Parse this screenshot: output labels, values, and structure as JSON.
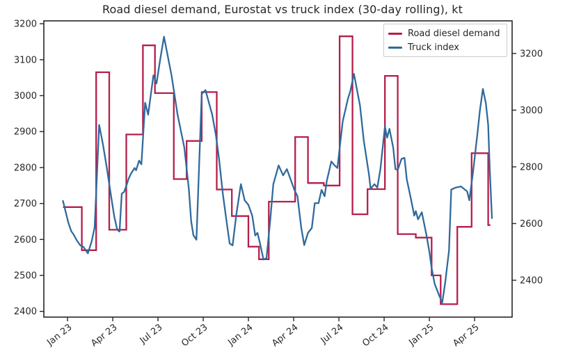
{
  "figure": {
    "title": "Road diesel demand, Eurostat vs truck index (30-day rolling), kt",
    "background": "#ffffff",
    "spine_color": "#262626",
    "tick_label_color": "#262626"
  },
  "legend": {
    "items": [
      {
        "label": "Road diesel demand",
        "color": "#b41f4a"
      },
      {
        "label": "Truck index",
        "color": "#306a9c"
      }
    ]
  },
  "chart_data": {
    "type": "line",
    "title": "Road diesel demand, Eurostat vs truck index (30-day rolling), kt",
    "unit": "kt",
    "x_unit": "months since Jan 2023 (0 = Jan 23, 3 = Apr 23, ...)",
    "grid": false,
    "legend_position": "upper right",
    "x_ticks": [
      {
        "m": 0,
        "label": "Jan 23"
      },
      {
        "m": 3,
        "label": "Apr 23"
      },
      {
        "m": 6,
        "label": "Jul 23"
      },
      {
        "m": 9,
        "label": "Oct 23"
      },
      {
        "m": 12,
        "label": "Jan 24"
      },
      {
        "m": 15,
        "label": "Apr 24"
      },
      {
        "m": 18,
        "label": "Jul 24"
      },
      {
        "m": 21,
        "label": "Oct 24"
      },
      {
        "m": 24,
        "label": "Jan 25"
      },
      {
        "m": 27,
        "label": "Apr 25"
      }
    ],
    "left_axis": {
      "series": "Road diesel demand",
      "ticks": [
        3200,
        3100,
        3000,
        2900,
        2800,
        2700,
        2600,
        2500,
        2400
      ],
      "range": [
        2384,
        3208
      ]
    },
    "right_axis": {
      "series": "Truck index",
      "ticks": [
        3200,
        3000,
        2800,
        2600,
        2400
      ],
      "range": [
        2270,
        3315
      ]
    },
    "series": [
      {
        "name": "Road diesel demand",
        "color": "#b41f4a",
        "axis": "left",
        "style": "step",
        "steps": [
          {
            "from": -0.3,
            "to": 0.95,
            "value": 2690
          },
          {
            "from": 0.95,
            "to": 1.9,
            "value": 2570
          },
          {
            "from": 1.9,
            "to": 2.77,
            "value": 3065
          },
          {
            "from": 2.77,
            "to": 3.9,
            "value": 2627
          },
          {
            "from": 3.9,
            "to": 5.0,
            "value": 2892
          },
          {
            "from": 5.0,
            "to": 5.8,
            "value": 3140
          },
          {
            "from": 5.8,
            "to": 7.05,
            "value": 3007
          },
          {
            "from": 7.05,
            "to": 7.9,
            "value": 2768
          },
          {
            "from": 7.9,
            "to": 8.9,
            "value": 2874
          },
          {
            "from": 8.9,
            "to": 9.9,
            "value": 3010
          },
          {
            "from": 9.9,
            "to": 10.9,
            "value": 2739
          },
          {
            "from": 10.9,
            "to": 12.0,
            "value": 2665
          },
          {
            "from": 12.0,
            "to": 12.7,
            "value": 2580
          },
          {
            "from": 12.7,
            "to": 13.35,
            "value": 2545
          },
          {
            "from": 13.35,
            "to": 15.1,
            "value": 2705
          },
          {
            "from": 15.1,
            "to": 15.95,
            "value": 2885
          },
          {
            "from": 15.95,
            "to": 17.0,
            "value": 2757
          },
          {
            "from": 17.0,
            "to": 18.05,
            "value": 2750
          },
          {
            "from": 18.05,
            "to": 18.9,
            "value": 3165
          },
          {
            "from": 18.9,
            "to": 19.9,
            "value": 2670
          },
          {
            "from": 19.9,
            "to": 21.05,
            "value": 2740
          },
          {
            "from": 21.05,
            "to": 21.9,
            "value": 3055
          },
          {
            "from": 21.9,
            "to": 23.1,
            "value": 2615
          },
          {
            "from": 23.1,
            "to": 24.15,
            "value": 2605
          },
          {
            "from": 24.15,
            "to": 24.75,
            "value": 2500
          },
          {
            "from": 24.75,
            "to": 25.85,
            "value": 2420
          },
          {
            "from": 25.85,
            "to": 26.8,
            "value": 2635
          },
          {
            "from": 26.8,
            "to": 27.9,
            "value": 2840
          },
          {
            "from": 27.9,
            "to": 28.05,
            "value": 2640
          }
        ]
      },
      {
        "name": "Truck index",
        "color": "#306a9c",
        "axis": "right",
        "style": "line",
        "points": [
          [
            -0.3,
            2680
          ],
          [
            -0.15,
            2648
          ],
          [
            0.05,
            2604
          ],
          [
            0.25,
            2573
          ],
          [
            0.4,
            2562
          ],
          [
            0.6,
            2542
          ],
          [
            0.85,
            2523
          ],
          [
            1.05,
            2518
          ],
          [
            1.35,
            2495
          ],
          [
            1.6,
            2537
          ],
          [
            1.8,
            2587
          ],
          [
            2.1,
            2948
          ],
          [
            2.35,
            2880
          ],
          [
            2.6,
            2800
          ],
          [
            2.85,
            2710
          ],
          [
            3.1,
            2625
          ],
          [
            3.3,
            2578
          ],
          [
            3.45,
            2572
          ],
          [
            3.6,
            2706
          ],
          [
            3.75,
            2711
          ],
          [
            3.9,
            2733
          ],
          [
            4.05,
            2758
          ],
          [
            4.2,
            2775
          ],
          [
            4.45,
            2796
          ],
          [
            4.55,
            2788
          ],
          [
            4.75,
            2822
          ],
          [
            4.9,
            2809
          ],
          [
            5.15,
            3026
          ],
          [
            5.35,
            2984
          ],
          [
            5.7,
            3123
          ],
          [
            5.9,
            3094
          ],
          [
            6.15,
            3180
          ],
          [
            6.4,
            3259
          ],
          [
            6.9,
            3123
          ],
          [
            7.3,
            2984
          ],
          [
            7.75,
            2868
          ],
          [
            8.05,
            2722
          ],
          [
            8.2,
            2609
          ],
          [
            8.35,
            2559
          ],
          [
            8.55,
            2543
          ],
          [
            8.9,
            3057
          ],
          [
            9.15,
            3071
          ],
          [
            9.6,
            2984
          ],
          [
            9.85,
            2910
          ],
          [
            10.05,
            2828
          ],
          [
            10.3,
            2706
          ],
          [
            10.5,
            2628
          ],
          [
            10.75,
            2530
          ],
          [
            10.95,
            2523
          ],
          [
            11.2,
            2633
          ],
          [
            11.5,
            2739
          ],
          [
            11.75,
            2682
          ],
          [
            12.0,
            2666
          ],
          [
            12.25,
            2628
          ],
          [
            12.45,
            2558
          ],
          [
            12.6,
            2567
          ],
          [
            12.75,
            2534
          ],
          [
            13.0,
            2473
          ],
          [
            13.2,
            2478
          ],
          [
            13.45,
            2615
          ],
          [
            13.65,
            2739
          ],
          [
            14.0,
            2805
          ],
          [
            14.3,
            2770
          ],
          [
            14.55,
            2792
          ],
          [
            15.05,
            2719
          ],
          [
            15.25,
            2696
          ],
          [
            15.5,
            2586
          ],
          [
            15.7,
            2524
          ],
          [
            15.95,
            2567
          ],
          [
            16.2,
            2584
          ],
          [
            16.4,
            2672
          ],
          [
            16.65,
            2672
          ],
          [
            16.85,
            2719
          ],
          [
            17.05,
            2696
          ],
          [
            17.2,
            2751
          ],
          [
            17.5,
            2819
          ],
          [
            17.7,
            2806
          ],
          [
            17.9,
            2796
          ],
          [
            18.25,
            2960
          ],
          [
            18.6,
            3041
          ],
          [
            18.75,
            3065
          ],
          [
            19.0,
            3128
          ],
          [
            19.4,
            3016
          ],
          [
            19.65,
            2893
          ],
          [
            20.0,
            2771
          ],
          [
            20.1,
            2722
          ],
          [
            20.35,
            2739
          ],
          [
            20.55,
            2727
          ],
          [
            20.75,
            2792
          ],
          [
            20.9,
            2866
          ],
          [
            21.05,
            2942
          ],
          [
            21.2,
            2903
          ],
          [
            21.35,
            2934
          ],
          [
            21.6,
            2868
          ],
          [
            21.75,
            2792
          ],
          [
            21.9,
            2789
          ],
          [
            22.15,
            2828
          ],
          [
            22.35,
            2832
          ],
          [
            22.5,
            2756
          ],
          [
            22.75,
            2694
          ],
          [
            23.0,
            2628
          ],
          [
            23.1,
            2644
          ],
          [
            23.25,
            2615
          ],
          [
            23.5,
            2640
          ],
          [
            23.8,
            2562
          ],
          [
            24.0,
            2500
          ],
          [
            24.15,
            2444
          ],
          [
            24.35,
            2387
          ],
          [
            24.6,
            2353
          ],
          [
            24.85,
            2321
          ],
          [
            25.05,
            2391
          ],
          [
            25.3,
            2505
          ],
          [
            25.45,
            2720
          ],
          [
            25.75,
            2727
          ],
          [
            26.1,
            2731
          ],
          [
            26.35,
            2720
          ],
          [
            26.5,
            2714
          ],
          [
            26.65,
            2682
          ],
          [
            26.9,
            2783
          ],
          [
            27.2,
            2923
          ],
          [
            27.35,
            2999
          ],
          [
            27.55,
            3075
          ],
          [
            27.75,
            3024
          ],
          [
            27.9,
            2948
          ],
          [
            28.0,
            2796
          ],
          [
            28.15,
            2619
          ]
        ]
      }
    ]
  }
}
